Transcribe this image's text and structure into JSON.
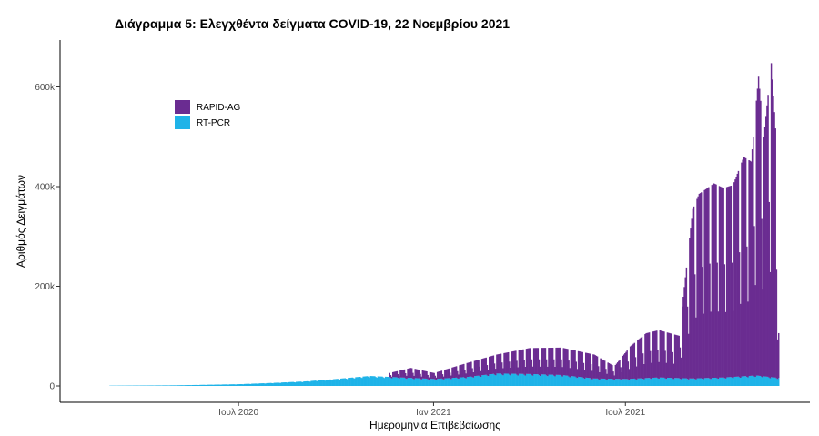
{
  "chart_data": {
    "type": "bar",
    "stacked": true,
    "title": "Διάγραμμα 5: Ελεγχθέντα δείγματα COVID-19, 22 Νοεμβρίου 2021",
    "xlabel": "Ημερομηνία Επιβεβαίωσης",
    "ylabel": "Αριθμός Δειγμάτων",
    "x_range": [
      "2020-03-01",
      "2021-11-22"
    ],
    "ylim": [
      0,
      700000
    ],
    "y_ticks": [
      {
        "value": 0,
        "label": "0"
      },
      {
        "value": 200000,
        "label": "200k"
      },
      {
        "value": 400000,
        "label": "400k"
      },
      {
        "value": 600000,
        "label": "600k"
      }
    ],
    "x_ticks": [
      {
        "date": "2020-07-01",
        "label": "Ιουλ 2020"
      },
      {
        "date": "2021-01-01",
        "label": "Ιαν 2021"
      },
      {
        "date": "2021-07-01",
        "label": "Ιουλ 2021"
      }
    ],
    "grid": false,
    "legend_position": "top-left",
    "series": [
      {
        "name": "RAPID-AG",
        "color": "#6a2c91",
        "points": [
          [
            "2020-11-20",
            8000
          ],
          [
            "2020-12-10",
            20000
          ],
          [
            "2021-01-01",
            12000
          ],
          [
            "2021-02-01",
            28000
          ],
          [
            "2021-03-01",
            38000
          ],
          [
            "2021-04-01",
            52000
          ],
          [
            "2021-05-01",
            55000
          ],
          [
            "2021-06-01",
            48000
          ],
          [
            "2021-06-20",
            25000
          ],
          [
            "2021-07-05",
            65000
          ],
          [
            "2021-07-20",
            90000
          ],
          [
            "2021-08-01",
            95000
          ],
          [
            "2021-08-20",
            85000
          ],
          [
            "2021-09-02",
            340000
          ],
          [
            "2021-09-08",
            370000
          ],
          [
            "2021-09-15",
            380000
          ],
          [
            "2021-09-22",
            390000
          ],
          [
            "2021-10-01",
            380000
          ],
          [
            "2021-10-10",
            385000
          ],
          [
            "2021-10-20",
            440000
          ],
          [
            "2021-10-27",
            430000
          ],
          [
            "2021-11-03",
            600000
          ],
          [
            "2021-11-08",
            480000
          ],
          [
            "2021-11-15",
            630000
          ],
          [
            "2021-11-19",
            500000
          ],
          [
            "2021-11-22",
            90000
          ]
        ]
      },
      {
        "name": "RT-PCR",
        "color": "#1fb3e8",
        "points": [
          [
            "2020-03-01",
            500
          ],
          [
            "2020-05-01",
            1200
          ],
          [
            "2020-07-01",
            3500
          ],
          [
            "2020-08-01",
            6000
          ],
          [
            "2020-09-01",
            9000
          ],
          [
            "2020-10-01",
            14000
          ],
          [
            "2020-11-01",
            20000
          ],
          [
            "2020-12-01",
            17000
          ],
          [
            "2021-01-01",
            14000
          ],
          [
            "2021-02-01",
            18000
          ],
          [
            "2021-03-01",
            25000
          ],
          [
            "2021-04-01",
            24000
          ],
          [
            "2021-05-01",
            22000
          ],
          [
            "2021-06-01",
            15000
          ],
          [
            "2021-07-01",
            14000
          ],
          [
            "2021-08-01",
            17000
          ],
          [
            "2021-09-01",
            15000
          ],
          [
            "2021-10-01",
            17000
          ],
          [
            "2021-11-01",
            21000
          ],
          [
            "2021-11-22",
            16000
          ]
        ]
      }
    ]
  }
}
